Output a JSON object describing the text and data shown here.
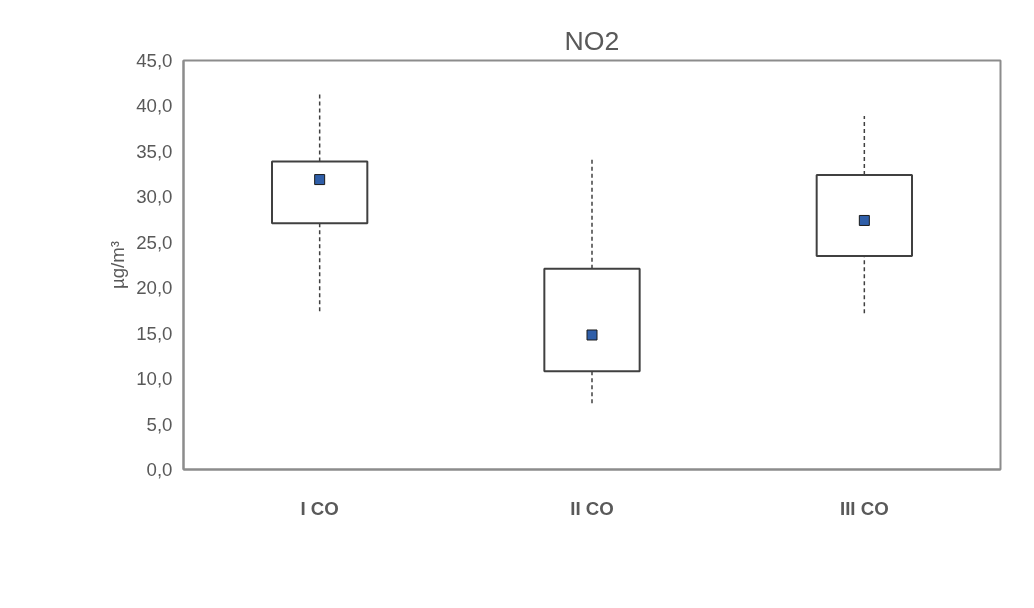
{
  "chart_data": {
    "type": "box",
    "title": "NO2",
    "ylabel": "µg/m³",
    "categories": [
      "I CO",
      "II CO",
      "III CO"
    ],
    "boxes": [
      {
        "low": 17.4,
        "q1": 27.1,
        "q3": 33.9,
        "high": 41.5
      },
      {
        "low": 7.3,
        "q1": 10.8,
        "q3": 22.1,
        "high": 34.3
      },
      {
        "low": 17.2,
        "q1": 23.5,
        "q3": 32.4,
        "high": 38.9
      }
    ],
    "series": [
      {
        "type": "scatter",
        "x": [
          "I CO",
          "II CO",
          "III CO"
        ],
        "values": [
          31.9,
          14.8,
          27.4
        ],
        "color": "#2f5ea8"
      }
    ],
    "marker": "square",
    "line_style": "dashed",
    "ylim": [
      0,
      45
    ],
    "yticks": [
      {
        "value": 0,
        "label": "0,0"
      },
      {
        "value": 5,
        "label": "5,0"
      },
      {
        "value": 10,
        "label": "10,0"
      },
      {
        "value": 15,
        "label": "15,0"
      },
      {
        "value": 20,
        "label": "20,0"
      },
      {
        "value": 25,
        "label": "25,0"
      },
      {
        "value": 30,
        "label": "30,0"
      },
      {
        "value": 35,
        "label": "35,0"
      },
      {
        "value": 40,
        "label": "40,0"
      },
      {
        "value": 45,
        "label": "45,0"
      }
    ],
    "grid": false
  }
}
